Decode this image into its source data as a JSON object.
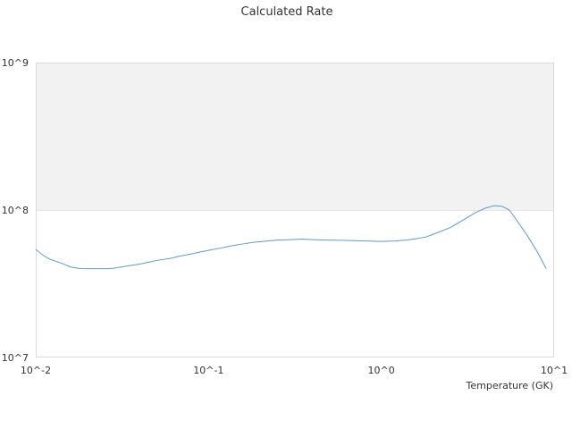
{
  "chart_data": {
    "type": "line",
    "title": "Calculated Rate",
    "xlabel": "Temperature (GK)",
    "ylabel": "",
    "x_scale": "log",
    "y_scale": "log",
    "xlim": [
      0.01,
      10
    ],
    "ylim": [
      10000000,
      1000000000
    ],
    "x_tick_labels": [
      "10^-2",
      "10^-1",
      "10^0",
      "10^1"
    ],
    "y_tick_labels": [
      "10^7",
      "10^8",
      "10^9"
    ],
    "grid": false,
    "shaded_band": {
      "y_from": 100000000,
      "y_to": 1000000000,
      "color": "#f2f2f2"
    },
    "series": [
      {
        "color": "#5b9bd5",
        "x": [
          0.01,
          0.011,
          0.012,
          0.014,
          0.016,
          0.018,
          0.02,
          0.022,
          0.025,
          0.028,
          0.03,
          0.035,
          0.04,
          0.045,
          0.05,
          0.06,
          0.07,
          0.08,
          0.09,
          0.1,
          0.12,
          0.14,
          0.16,
          0.18,
          0.2,
          0.25,
          0.3,
          0.35,
          0.4,
          0.5,
          0.6,
          0.7,
          0.8,
          0.9,
          1.0,
          1.2,
          1.4,
          1.6,
          1.8,
          2.0,
          2.5,
          3.0,
          3.5,
          4.0,
          4.5,
          5.0,
          5.5,
          6.0,
          7.0,
          8.0,
          9.0
        ],
        "y": [
          54000000,
          49500000,
          46500000,
          43700000,
          41000000,
          40100000,
          40000000,
          40000000,
          40000000,
          40200000,
          40800000,
          42000000,
          43000000,
          44300000,
          45500000,
          47000000,
          49000000,
          50500000,
          52000000,
          53300000,
          55500000,
          57500000,
          59000000,
          60300000,
          61000000,
          62500000,
          63000000,
          63500000,
          63000000,
          62500000,
          62300000,
          62000000,
          61700000,
          61500000,
          61300000,
          61700000,
          62500000,
          64000000,
          65500000,
          68500000,
          76000000,
          86000000,
          96000000,
          103000000,
          107000000,
          106000000,
          100000000,
          87000000,
          67000000,
          52000000,
          40000000
        ]
      }
    ]
  }
}
